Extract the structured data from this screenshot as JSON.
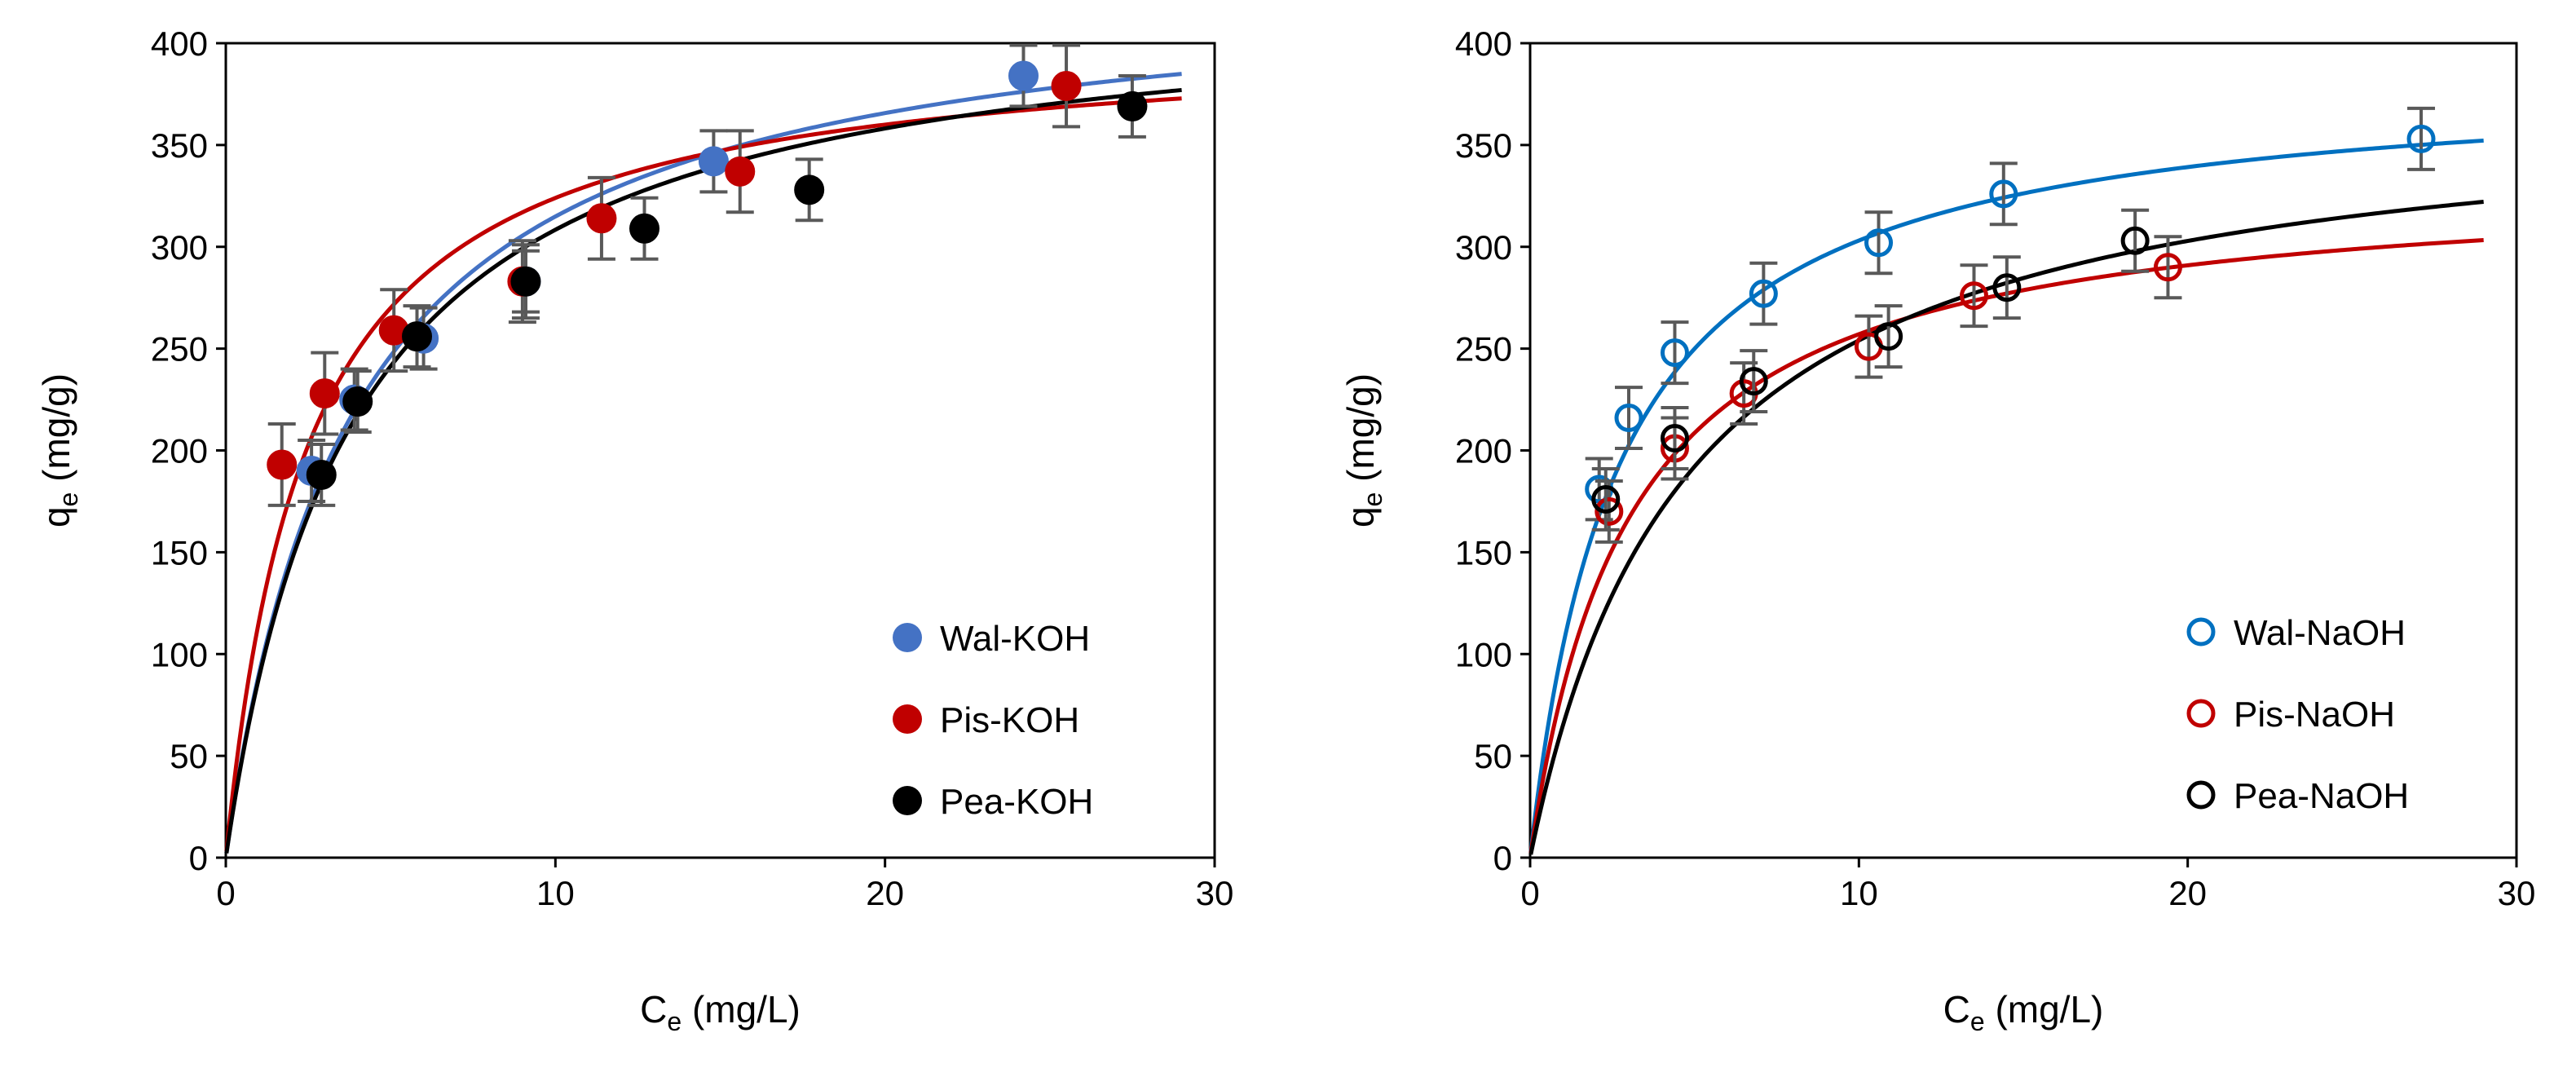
{
  "chart_data": [
    {
      "id": "left",
      "type": "scatter",
      "title": "",
      "xlabel": "C",
      "xlabel_sub": "e",
      "xlabel_suffix": " (mg/L)",
      "ylabel": "q",
      "ylabel_sub": "e",
      "ylabel_suffix": " (mg/g)",
      "xlim": [
        0,
        30
      ],
      "ylim": [
        0,
        400
      ],
      "xticks": [
        0,
        10,
        20,
        30
      ],
      "yticks": [
        0,
        50,
        100,
        150,
        200,
        250,
        300,
        350,
        400
      ],
      "grid": false,
      "legend_position": "bottom-right",
      "marker_style": "filled",
      "series": [
        {
          "name": "Wal-KOH",
          "color": "#4472C4",
          "points": [
            {
              "x": 2.6,
              "y": 190,
              "err": 15
            },
            {
              "x": 3.9,
              "y": 225,
              "err": 15
            },
            {
              "x": 6.0,
              "y": 255,
              "err": 15
            },
            {
              "x": 9.1,
              "y": 283,
              "err": 15
            },
            {
              "x": 14.8,
              "y": 342,
              "err": 15
            },
            {
              "x": 24.2,
              "y": 384,
              "err": 15
            }
          ],
          "fit": {
            "model": "langmuir",
            "qmax": 436,
            "k": 0.26
          }
        },
        {
          "name": "Pis-KOH",
          "color": "#C00000",
          "points": [
            {
              "x": 1.7,
              "y": 193,
              "err": 20
            },
            {
              "x": 3.0,
              "y": 228,
              "err": 20
            },
            {
              "x": 5.1,
              "y": 259,
              "err": 20
            },
            {
              "x": 9.0,
              "y": 283,
              "err": 20
            },
            {
              "x": 11.4,
              "y": 314,
              "err": 20
            },
            {
              "x": 15.6,
              "y": 337,
              "err": 20
            },
            {
              "x": 25.5,
              "y": 379,
              "err": 20
            }
          ],
          "fit": {
            "model": "langmuir",
            "qmax": 405,
            "k": 0.4
          }
        },
        {
          "name": "Pea-KOH",
          "color": "#000000",
          "points": [
            {
              "x": 2.9,
              "y": 188,
              "err": 15
            },
            {
              "x": 4.0,
              "y": 224,
              "err": 15
            },
            {
              "x": 5.8,
              "y": 256,
              "err": 15
            },
            {
              "x": 9.1,
              "y": 283,
              "err": 18
            },
            {
              "x": 12.7,
              "y": 309,
              "err": 15
            },
            {
              "x": 17.7,
              "y": 328,
              "err": 15
            },
            {
              "x": 27.5,
              "y": 369,
              "err": 15
            }
          ],
          "fit": {
            "model": "langmuir",
            "qmax": 427,
            "k": 0.26
          }
        }
      ]
    },
    {
      "id": "right",
      "type": "scatter",
      "title": "",
      "xlabel": "C",
      "xlabel_sub": "e",
      "xlabel_suffix": " (mg/L)",
      "ylabel": "q",
      "ylabel_sub": "e",
      "ylabel_suffix": " (mg/g)",
      "xlim": [
        0,
        30
      ],
      "ylim": [
        0,
        400
      ],
      "xticks": [
        0,
        10,
        20,
        30
      ],
      "yticks": [
        0,
        50,
        100,
        150,
        200,
        250,
        300,
        350,
        400
      ],
      "grid": false,
      "legend_position": "bottom-right",
      "marker_style": "hollow",
      "series": [
        {
          "name": "Wal-NaOH",
          "color": "#0070C0",
          "points": [
            {
              "x": 2.1,
              "y": 181,
              "err": 15
            },
            {
              "x": 3.0,
              "y": 216,
              "err": 15
            },
            {
              "x": 4.4,
              "y": 248,
              "err": 15
            },
            {
              "x": 7.1,
              "y": 277,
              "err": 15
            },
            {
              "x": 10.6,
              "y": 302,
              "err": 15
            },
            {
              "x": 14.4,
              "y": 326,
              "err": 15
            },
            {
              "x": 27.1,
              "y": 353,
              "err": 15
            }
          ],
          "fit": {
            "model": "langmuir",
            "qmax": 385,
            "k": 0.37
          }
        },
        {
          "name": "Pis-NaOH",
          "color": "#C00000",
          "points": [
            {
              "x": 2.4,
              "y": 170,
              "err": 15
            },
            {
              "x": 4.4,
              "y": 201,
              "err": 15
            },
            {
              "x": 6.5,
              "y": 228,
              "err": 15
            },
            {
              "x": 10.3,
              "y": 251,
              "err": 15
            },
            {
              "x": 13.5,
              "y": 276,
              "err": 15
            },
            {
              "x": 19.4,
              "y": 290,
              "err": 15
            }
          ],
          "fit": {
            "model": "langmuir",
            "qmax": 335,
            "k": 0.33
          }
        },
        {
          "name": "Pea-NaOH",
          "color": "#000000",
          "points": [
            {
              "x": 2.3,
              "y": 176,
              "err": 15
            },
            {
              "x": 4.4,
              "y": 206,
              "err": 15
            },
            {
              "x": 6.8,
              "y": 234,
              "err": 15
            },
            {
              "x": 10.9,
              "y": 256,
              "err": 15
            },
            {
              "x": 14.5,
              "y": 280,
              "err": 15
            },
            {
              "x": 18.4,
              "y": 303,
              "err": 15
            }
          ],
          "fit": {
            "model": "langmuir",
            "qmax": 375,
            "k": 0.21
          }
        }
      ]
    }
  ]
}
